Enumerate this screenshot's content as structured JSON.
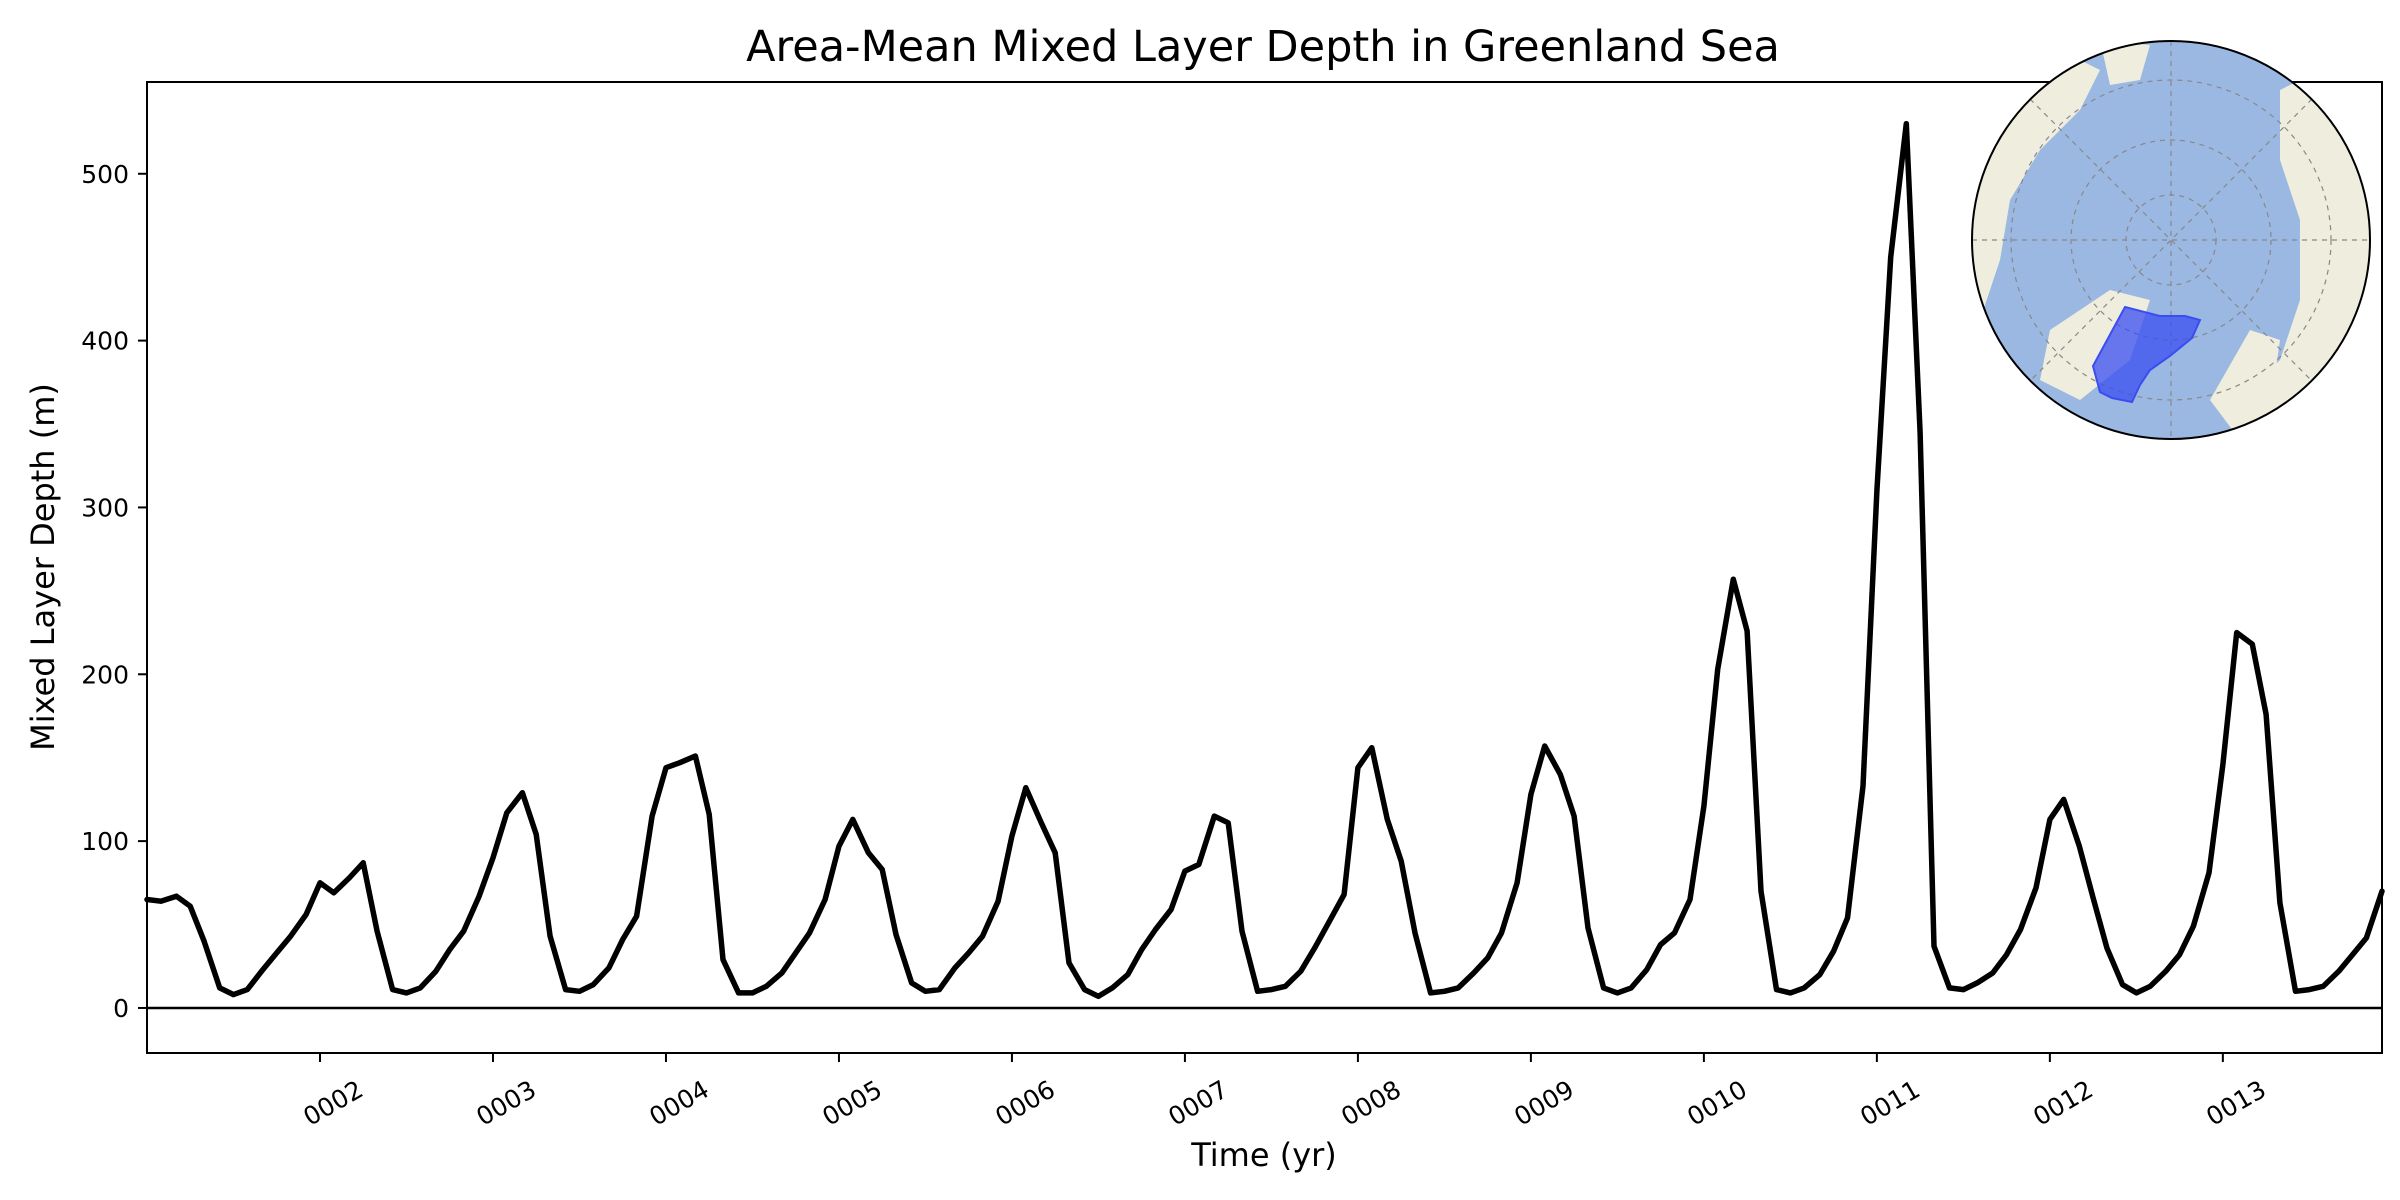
{
  "chart_data": {
    "type": "line",
    "title": "Area-Mean Mixed Layer Depth in Greenland Sea",
    "xlabel": "Time (yr)",
    "ylabel": "Mixed Layer Depth (m)",
    "xlim": [
      1.0,
      13.92
    ],
    "ylim": [
      -27,
      555
    ],
    "yticks": [
      0,
      100,
      200,
      300,
      400,
      500
    ],
    "xticks": [
      {
        "value": 2,
        "label": "0002"
      },
      {
        "value": 3,
        "label": "0003"
      },
      {
        "value": 4,
        "label": "0004"
      },
      {
        "value": 5,
        "label": "0005"
      },
      {
        "value": 6,
        "label": "0006"
      },
      {
        "value": 7,
        "label": "0007"
      },
      {
        "value": 8,
        "label": "0008"
      },
      {
        "value": 9,
        "label": "0009"
      },
      {
        "value": 10,
        "label": "0010"
      },
      {
        "value": 11,
        "label": "0011"
      },
      {
        "value": 12,
        "label": "0012"
      },
      {
        "value": 13,
        "label": "0013"
      }
    ],
    "reference_line": 0,
    "grid": false,
    "line_color": "#000000",
    "series": [
      {
        "x": [
          1.0,
          1.08,
          1.17,
          1.25,
          1.33,
          1.42,
          1.5,
          1.58,
          1.67,
          1.75,
          1.83,
          1.92,
          2.0,
          2.08,
          2.17,
          2.25,
          2.33,
          2.42,
          2.5,
          2.58,
          2.67,
          2.75,
          2.83,
          2.92,
          3.0,
          3.08,
          3.17,
          3.25,
          3.33,
          3.42,
          3.5,
          3.58,
          3.67,
          3.75,
          3.83,
          3.92,
          4.0,
          4.08,
          4.17,
          4.25,
          4.33,
          4.42,
          4.5,
          4.58,
          4.67,
          4.75,
          4.83,
          4.92,
          5.0,
          5.08,
          5.17,
          5.25,
          5.33,
          5.42,
          5.5,
          5.58,
          5.67,
          5.75,
          5.83,
          5.92,
          6.0,
          6.08,
          6.17,
          6.25,
          6.33,
          6.42,
          6.5,
          6.58,
          6.67,
          6.75,
          6.83,
          6.92,
          7.0,
          7.08,
          7.17,
          7.25,
          7.33,
          7.42,
          7.5,
          7.58,
          7.67,
          7.75,
          7.83,
          7.92,
          8.0,
          8.08,
          8.17,
          8.25,
          8.33,
          8.42,
          8.5,
          8.58,
          8.67,
          8.75,
          8.83,
          8.92,
          9.0,
          9.08,
          9.17,
          9.25,
          9.33,
          9.42,
          9.5,
          9.58,
          9.67,
          9.75,
          9.83,
          9.92,
          10.0,
          10.08,
          10.17,
          10.25,
          10.33,
          10.42,
          10.5,
          10.58,
          10.67,
          10.75,
          10.83,
          10.92,
          11.0,
          11.08,
          11.17,
          11.25,
          11.33,
          11.42,
          11.5,
          11.58,
          11.67,
          11.75,
          11.83,
          11.92,
          12.0,
          12.08,
          12.17,
          12.25,
          12.33,
          12.42,
          12.5,
          12.58,
          12.67,
          12.75,
          12.83,
          12.92,
          13.0,
          13.08,
          13.17,
          13.25,
          13.33,
          13.42,
          13.5,
          13.58,
          13.67,
          13.75,
          13.83,
          13.92
        ],
        "y": [
          65,
          64,
          67,
          61,
          40,
          12,
          8,
          11,
          23,
          33,
          43,
          56,
          75,
          69,
          78,
          87,
          46,
          11,
          9,
          12,
          22,
          35,
          46,
          67,
          90,
          117,
          129,
          104,
          43,
          11,
          10,
          14,
          24,
          41,
          55,
          115,
          144,
          147,
          151,
          116,
          29,
          9,
          9,
          13,
          21,
          33,
          45,
          65,
          97,
          113,
          93,
          83,
          44,
          15,
          10,
          11,
          24,
          33,
          43,
          64,
          103,
          132,
          111,
          93,
          27,
          11,
          7,
          12,
          20,
          35,
          47,
          59,
          82,
          86,
          115,
          111,
          46,
          10,
          11,
          13,
          22,
          36,
          51,
          68,
          144,
          156,
          113,
          88,
          45,
          9,
          10,
          12,
          21,
          30,
          45,
          75,
          128,
          157,
          140,
          115,
          48,
          12,
          9,
          12,
          23,
          38,
          45,
          65,
          121,
          203,
          257,
          226,
          70,
          11,
          9,
          12,
          20,
          34,
          54,
          133,
          310,
          450,
          530,
          345,
          37,
          12,
          11,
          15,
          21,
          32,
          47,
          72,
          113,
          125,
          97,
          66,
          36,
          14,
          9,
          13,
          22,
          32,
          49,
          81,
          146,
          225,
          218,
          176,
          63,
          10,
          11,
          13,
          22,
          32,
          42,
          70
        ]
      }
    ],
    "inset": {
      "type": "polar-map",
      "land_color": "#efeddd",
      "ocean_color": "#9ab8e2",
      "region_color": "#3a4df0"
    }
  }
}
